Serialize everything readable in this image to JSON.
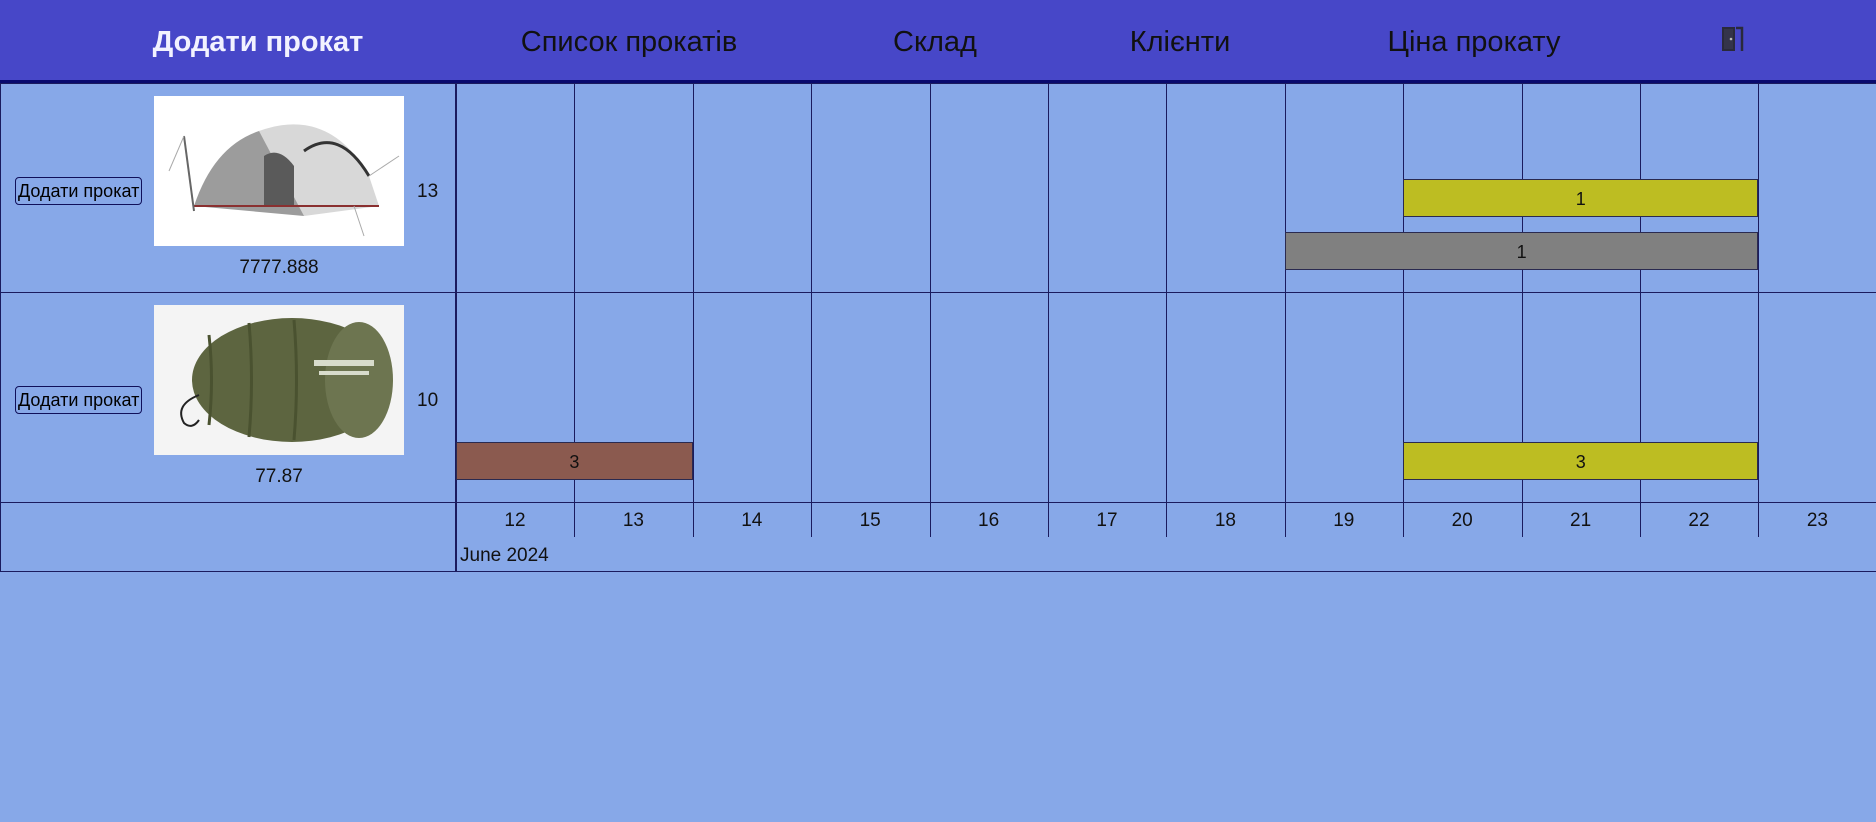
{
  "nav": {
    "items": [
      {
        "label": "Додати прокат",
        "active": true
      },
      {
        "label": "Список прокатів",
        "active": false
      },
      {
        "label": "Склад",
        "active": false
      },
      {
        "label": "Клієнти",
        "active": false
      },
      {
        "label": "Ціна прокату",
        "active": false
      }
    ],
    "exit_icon": "door-exit-icon"
  },
  "items": [
    {
      "button_label": "Додати прокат",
      "image": "tent-image",
      "price": "7777.888",
      "quantity": "13"
    },
    {
      "button_label": "Додати прокат",
      "image": "sleeping-bag-image",
      "price": "77.87",
      "quantity": "10"
    }
  ],
  "timeline": {
    "days": [
      "12",
      "13",
      "14",
      "15",
      "16",
      "17",
      "18",
      "19",
      "20",
      "21",
      "22",
      "23"
    ],
    "month": "June 2024",
    "bookings": [
      {
        "item": 0,
        "start_day": "20",
        "end_day": "22",
        "count": "1",
        "color": "#bdbd22"
      },
      {
        "item": 0,
        "start_day": "19",
        "end_day": "22",
        "count": "1",
        "color": "#808080"
      },
      {
        "item": 1,
        "start_day": "12",
        "end_day": "13",
        "count": "3",
        "color": "#8b5a4f"
      },
      {
        "item": 1,
        "start_day": "20",
        "end_day": "22",
        "count": "3",
        "color": "#bdbd22"
      }
    ]
  },
  "colors": {
    "nav_bg": "#4747c8",
    "page_bg": "#87a8e8",
    "grid_line": "#1b1b5e"
  }
}
